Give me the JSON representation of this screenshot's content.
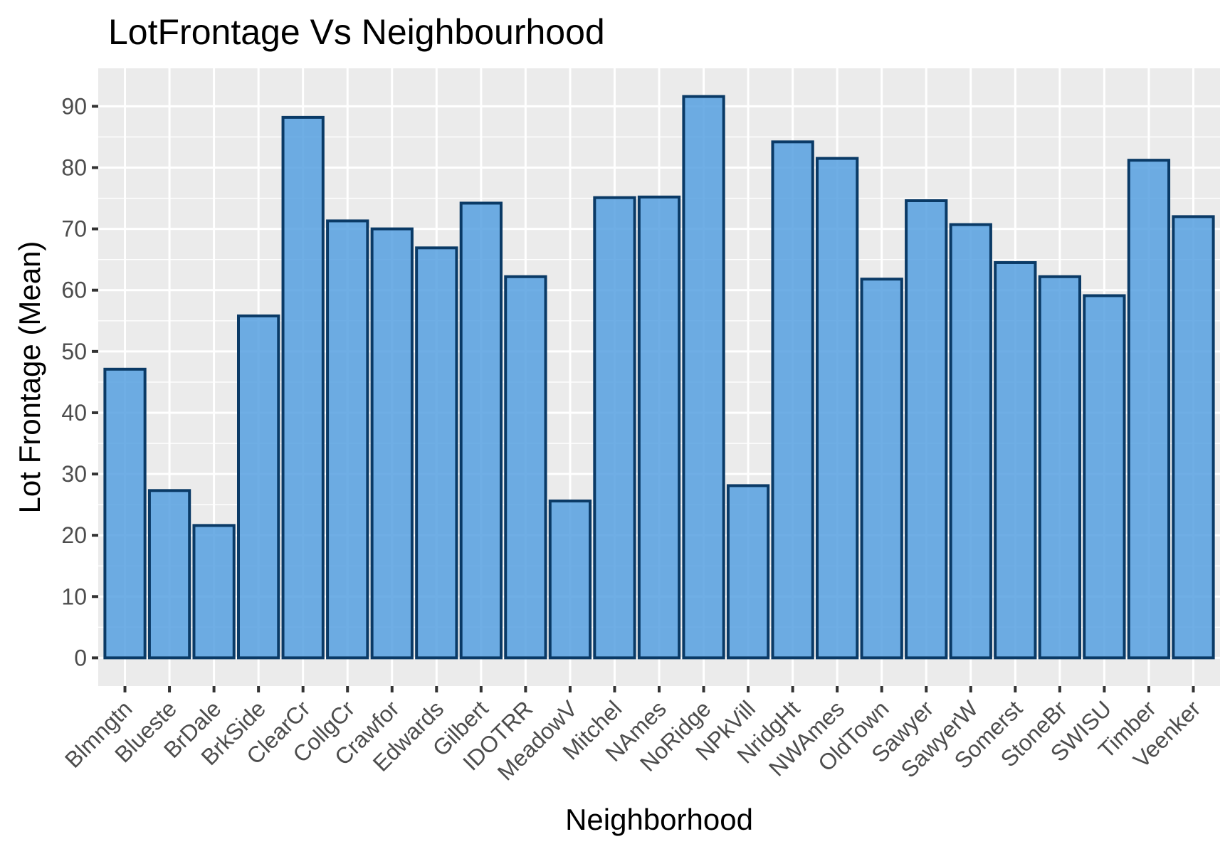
{
  "chart_data": {
    "type": "bar",
    "title": "LotFrontage Vs Neighbourhood",
    "xlabel": "Neighborhood",
    "ylabel": "Lot Frontage (Mean)",
    "categories": [
      "Blmngtn",
      "Blueste",
      "BrDale",
      "BrkSide",
      "ClearCr",
      "CollgCr",
      "Crawfor",
      "Edwards",
      "Gilbert",
      "IDOTRR",
      "MeadowV",
      "Mitchel",
      "NAmes",
      "NoRidge",
      "NPkVill",
      "NridgHt",
      "NWAmes",
      "OldTown",
      "Sawyer",
      "SawyerW",
      "Somerst",
      "StoneBr",
      "SWISU",
      "Timber",
      "Veenker"
    ],
    "values": [
      47.1,
      27.3,
      21.6,
      55.8,
      88.2,
      71.3,
      70.0,
      66.9,
      74.2,
      62.2,
      25.6,
      75.1,
      75.2,
      91.6,
      28.1,
      84.2,
      81.5,
      61.8,
      74.6,
      70.7,
      64.5,
      62.2,
      59.1,
      81.2,
      72.0
    ],
    "yticks": [
      0,
      10,
      20,
      30,
      40,
      50,
      60,
      70,
      80,
      90
    ],
    "ylim": [
      -4.6,
      96.2
    ],
    "grid": true,
    "colors": {
      "bar_fill": "#56a0e0",
      "bar_outline": "#0a3a66",
      "panel": "#ebebeb"
    }
  }
}
